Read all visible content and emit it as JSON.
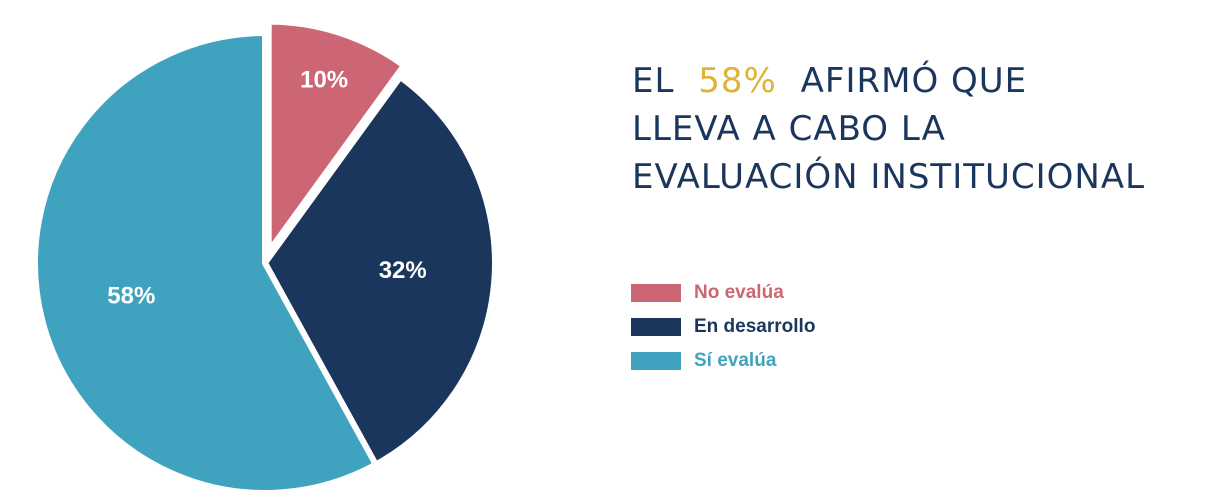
{
  "chart_data": {
    "type": "pie",
    "title": [
      "EL",
      "58%",
      "AFIRMÓ QUE",
      "LLEVA A CABO LA",
      "EVALUACIÓN INSTITUCIONAL"
    ],
    "categories": [
      "No evalúa",
      "En desarrollo",
      "Sí evalúa"
    ],
    "values": [
      10,
      32,
      58
    ],
    "value_labels": [
      "10%",
      "32%",
      "58%"
    ],
    "colors": [
      "#cd6674",
      "#1b365d",
      "#3fa3c0"
    ],
    "title_highlight_color": "#e0b23a"
  }
}
